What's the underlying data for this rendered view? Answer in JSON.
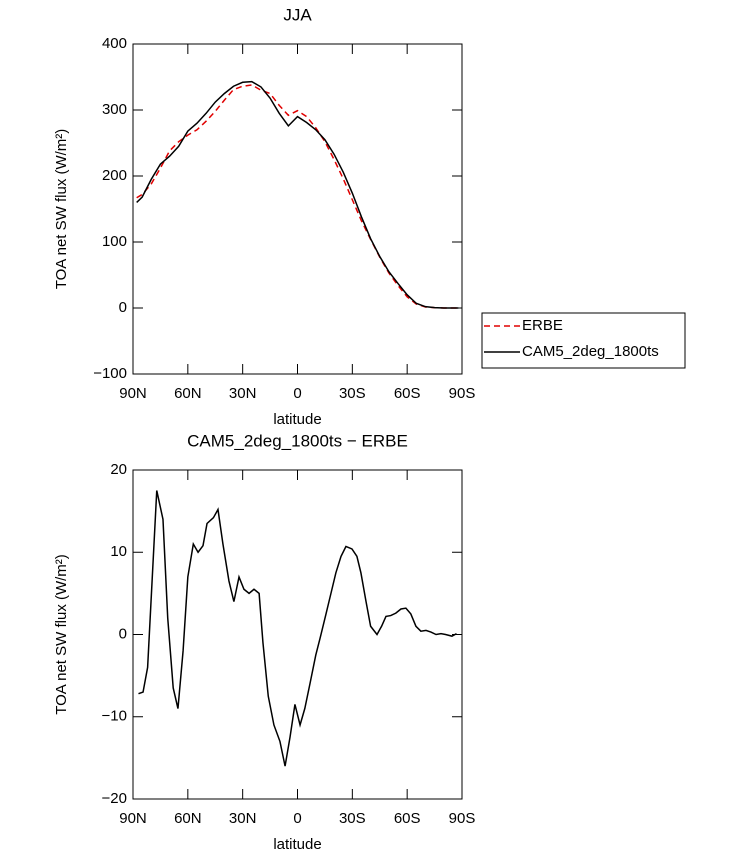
{
  "chart_data": [
    {
      "type": "line",
      "title": "JJA",
      "xlabel": "latitude",
      "ylabel": "TOA net SW flux (W/m²)",
      "x": [
        88,
        85,
        80,
        75,
        70,
        65,
        60,
        55,
        50,
        45,
        40,
        35,
        30,
        25,
        20,
        15,
        10,
        5,
        0,
        -5,
        -10,
        -15,
        -20,
        -25,
        -30,
        -35,
        -40,
        -45,
        -50,
        -55,
        -60,
        -65,
        -70,
        -75,
        -80,
        -85,
        -88
      ],
      "series": [
        {
          "name": "ERBE",
          "color": "#e00000",
          "dash": "dashed",
          "values": [
            167,
            172,
            188,
            212,
            238,
            252,
            262,
            270,
            283,
            298,
            315,
            331,
            336,
            338,
            330,
            325,
            307,
            292,
            299,
            290,
            273,
            252,
            225,
            196,
            164,
            132,
            104,
            77,
            53,
            34,
            17,
            6,
            1.5,
            0.5,
            0,
            0,
            0
          ]
        },
        {
          "name": "CAM5_2deg_1800ts",
          "color": "#000000",
          "dash": "solid",
          "values": [
            160,
            168,
            195,
            218,
            230,
            245,
            268,
            280,
            295,
            312,
            325,
            336,
            342,
            343,
            335,
            318,
            295,
            276,
            290,
            281,
            270,
            255,
            233,
            206,
            174,
            138,
            105,
            78,
            55,
            37,
            20,
            7,
            2,
            0.5,
            0,
            0,
            0
          ]
        }
      ],
      "xlim": [
        90,
        -90
      ],
      "xticks": [
        {
          "value": 90,
          "label": "90N"
        },
        {
          "value": 60,
          "label": "60N"
        },
        {
          "value": 30,
          "label": "30N"
        },
        0,
        {
          "value": -30,
          "label": "30S"
        },
        {
          "value": -60,
          "label": "60S"
        },
        {
          "value": -90,
          "label": "90S"
        }
      ],
      "ylim": [
        -100,
        400
      ],
      "yticks": [
        {
          "value": -100,
          "label": "−100"
        },
        0,
        100,
        200,
        300,
        400
      ],
      "legend": "right"
    },
    {
      "type": "line",
      "title": "CAM5_2deg_1800ts − ERBE",
      "xlabel": "latitude",
      "ylabel": "TOA net SW flux (W/m²)",
      "x": [
        87,
        84.5,
        82,
        77,
        73.6,
        71,
        68,
        65.4,
        62.6,
        60,
        57,
        54.4,
        51.7,
        49.5,
        46,
        43.5,
        40.8,
        37.5,
        34.8,
        32,
        29.3,
        26.5,
        23.8,
        21,
        18.9,
        16,
        12.9,
        9.6,
        6.8,
        4.1,
        1.4,
        -1.4,
        -4,
        -6.8,
        -10,
        -12.3,
        -15.6,
        -18.3,
        -21,
        -23.8,
        -26.5,
        -29.8,
        -32.5,
        -34.7,
        -37.5,
        -40,
        -43.5,
        -46,
        -48.4,
        -51,
        -53.8,
        -56.6,
        -59.3,
        -62,
        -64.8,
        -67.5,
        -70.3,
        -73,
        -75.8,
        -78.5,
        -81,
        -84.5,
        -87
      ],
      "series": [
        {
          "color": "#000000",
          "dash": "solid",
          "values": [
            -7.2,
            -7,
            -4,
            17.5,
            14,
            2,
            -6.5,
            -9,
            -2,
            7,
            11,
            10,
            10.8,
            13.5,
            14.2,
            15.2,
            11,
            6.5,
            4,
            7,
            5.5,
            5,
            5.5,
            5,
            -1,
            -7.5,
            -11,
            -13,
            -16,
            -12.5,
            -8.5,
            -11,
            -9,
            -6,
            -2.5,
            -0.5,
            2.5,
            5,
            7.5,
            9.5,
            10.7,
            10.4,
            9.5,
            7.5,
            4,
            1,
            0,
            1,
            2.2,
            2.3,
            2.6,
            3.1,
            3.2,
            2.5,
            1,
            0.4,
            0.5,
            0.3,
            0,
            0.1,
            0,
            -0.2,
            0.1
          ]
        }
      ],
      "xlim": [
        90,
        -90
      ],
      "xticks": [
        {
          "value": 90,
          "label": "90N"
        },
        {
          "value": 60,
          "label": "60N"
        },
        {
          "value": 30,
          "label": "30N"
        },
        0,
        {
          "value": -30,
          "label": "30S"
        },
        {
          "value": -60,
          "label": "60S"
        },
        {
          "value": -90,
          "label": "90S"
        }
      ],
      "ylim": [
        -20,
        20
      ],
      "yticks": [
        {
          "value": -20,
          "label": "−20"
        },
        {
          "value": -10,
          "label": "−10"
        },
        0,
        10,
        20
      ]
    }
  ]
}
